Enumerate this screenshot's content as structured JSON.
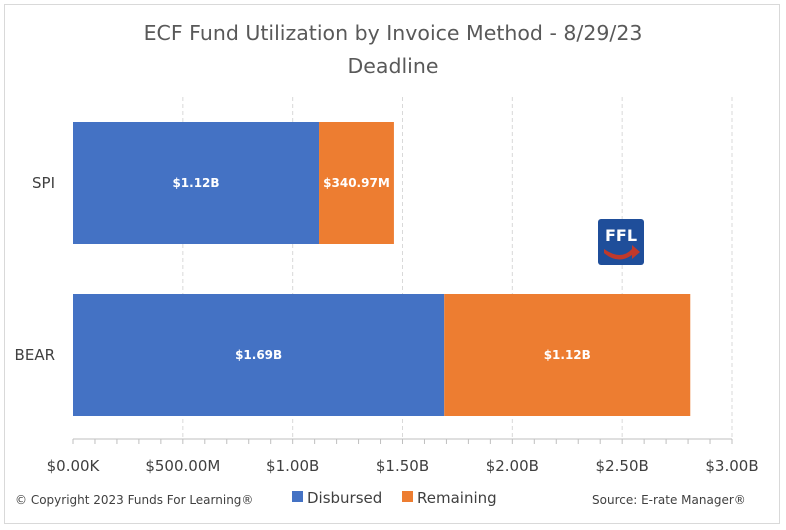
{
  "chart_data": {
    "type": "bar",
    "orientation": "horizontal",
    "stacked": true,
    "title_line1": "ECF Fund Utilization by Invoice Method - 8/29/23",
    "title_line2": "Deadline",
    "categories": [
      "SPI",
      "BEAR"
    ],
    "series": [
      {
        "name": "Disbursed",
        "color": "#4472C4",
        "values": [
          1.12,
          1.69
        ],
        "labels": [
          "$1.12B",
          "$1.69B"
        ]
      },
      {
        "name": "Remaining",
        "color": "#ED7D31",
        "values": [
          0.34097,
          1.12
        ],
        "labels": [
          "$340.97M",
          "$1.12B"
        ]
      }
    ],
    "x_ticks": [
      {
        "value": 0,
        "label": "$0.00K"
      },
      {
        "value": 0.5,
        "label": "$500.00M"
      },
      {
        "value": 1.0,
        "label": "$1.00B"
      },
      {
        "value": 1.5,
        "label": "$1.50B"
      },
      {
        "value": 2.0,
        "label": "$2.00B"
      },
      {
        "value": 2.5,
        "label": "$2.50B"
      },
      {
        "value": 3.0,
        "label": "$3.00B"
      }
    ],
    "xlim": [
      0,
      3.0
    ],
    "grid": "vertical dashed",
    "legend_position": "bottom"
  },
  "footer": {
    "copyright": "© Copyright 2023 Funds For Learning®",
    "source": "Source: E-rate Manager®"
  },
  "logo": {
    "text": "FFL",
    "bg_color": "#1F4E9A",
    "arrow_color": "#C0392B"
  }
}
